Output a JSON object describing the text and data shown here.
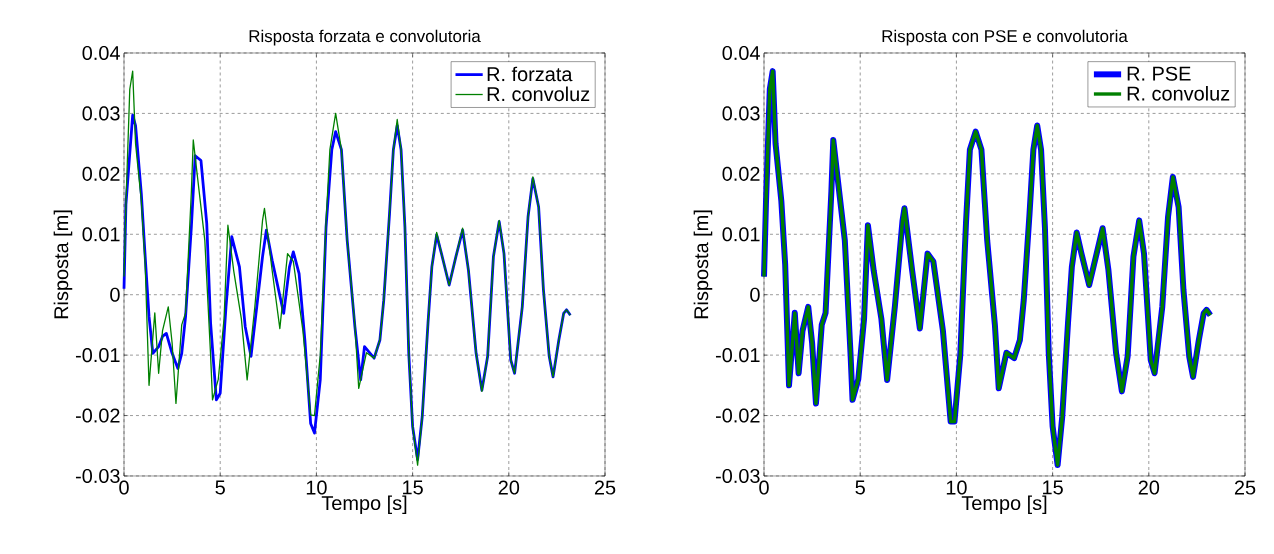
{
  "chart_data": [
    {
      "type": "line",
      "title": "Risposta forzata e convolutoria",
      "xlabel": "Tempo [s]",
      "ylabel": "Risposta [m]",
      "xlim": [
        0,
        25
      ],
      "ylim": [
        -0.03,
        0.04
      ],
      "xticks": [
        0,
        5,
        10,
        15,
        20,
        25
      ],
      "yticks": [
        -0.03,
        -0.02,
        -0.01,
        0,
        0.01,
        0.02,
        0.03,
        0.04
      ],
      "grid": true,
      "legend": "top right",
      "line_style": "solid",
      "series": [
        {
          "name": "R. forzata",
          "color": "#0000ff",
          "x": [
            0,
            0.1,
            0.45,
            0.6,
            0.9,
            1.1,
            1.3,
            1.5,
            1.8,
            2.0,
            2.2,
            2.5,
            2.8,
            3.0,
            3.2,
            3.5,
            3.7,
            4.0,
            4.3,
            4.5,
            4.8,
            5.0,
            5.3,
            5.6,
            6.0,
            6.3,
            6.6,
            6.9,
            7.2,
            7.4,
            7.7,
            8.0,
            8.3,
            8.6,
            8.8,
            9.1,
            9.4,
            9.7,
            9.9,
            10.2,
            10.5,
            10.8,
            11.0,
            11.3,
            11.6,
            12.0,
            12.3,
            12.5,
            13.0,
            13.3,
            13.5,
            13.8,
            14.0,
            14.2,
            14.4,
            14.6,
            14.8,
            15.0,
            15.26,
            15.5,
            15.8,
            16.0,
            16.25,
            16.5,
            16.9,
            17.25,
            17.6,
            17.9,
            18.3,
            18.6,
            18.9,
            19.2,
            19.5,
            19.75,
            20.1,
            20.3,
            20.7,
            21.0,
            21.25,
            21.55,
            21.8,
            22.1,
            22.3,
            22.6,
            22.85,
            23.0,
            23.2
          ],
          "values": [
            0.001,
            0.015,
            0.0297,
            0.028,
            0.0167,
            0.0063,
            -0.0036,
            -0.0097,
            -0.0086,
            -0.0069,
            -0.0064,
            -0.0097,
            -0.0122,
            -0.0097,
            -0.0036,
            0.0112,
            0.023,
            0.0222,
            0.0118,
            -0.0047,
            -0.0174,
            -0.0163,
            -0.002,
            0.0096,
            0.0046,
            -0.0053,
            -0.0102,
            -0.002,
            0.0063,
            0.0107,
            0.0057,
            0.0013,
            -0.0031,
            0.0046,
            0.0071,
            0.0035,
            -0.0075,
            -0.0213,
            -0.0229,
            -0.0141,
            0.0112,
            0.024,
            0.027,
            0.024,
            0.009,
            -0.0053,
            -0.0141,
            -0.0086,
            -0.0105,
            -0.0075,
            -0.0009,
            0.0134,
            0.024,
            0.028,
            0.024,
            0.0112,
            -0.0097,
            -0.0218,
            -0.0273,
            -0.0202,
            -0.0047,
            0.0046,
            0.0099,
            0.0068,
            0.0016,
            0.0063,
            0.0107,
            0.0041,
            -0.0097,
            -0.0158,
            -0.0102,
            0.0063,
            0.0121,
            0.0068,
            -0.0108,
            -0.013,
            -0.002,
            0.0129,
            0.0192,
            0.0145,
            0.0008,
            -0.0102,
            -0.0136,
            -0.0075,
            -0.0031,
            -0.0025,
            -0.0034
          ]
        },
        {
          "name": "R. convoluz",
          "color": "#008000",
          "x": [
            0,
            0.1,
            0.3,
            0.45,
            0.6,
            0.9,
            1.1,
            1.3,
            1.6,
            1.8,
            2.0,
            2.3,
            2.5,
            2.7,
            3.0,
            3.2,
            3.5,
            3.6,
            3.8,
            4.2,
            4.5,
            4.6,
            4.9,
            5.2,
            5.4,
            5.7,
            6.1,
            6.4,
            6.8,
            7.2,
            7.3,
            7.7,
            8.1,
            8.5,
            8.8,
            9.3,
            9.7,
            9.9,
            10.2,
            10.5,
            10.7,
            11.0,
            11.3,
            11.6,
            12.0,
            12.2,
            12.6,
            13.0,
            13.3,
            13.5,
            13.8,
            14.0,
            14.2,
            14.4,
            14.6,
            14.8,
            15.0,
            15.26,
            15.5,
            15.8,
            16.0,
            16.25,
            16.5,
            16.9,
            17.25,
            17.6,
            17.9,
            18.3,
            18.6,
            18.9,
            19.2,
            19.5,
            19.75,
            20.1,
            20.3,
            20.7,
            21.0,
            21.25,
            21.55,
            21.8,
            22.1,
            22.3,
            22.6,
            22.85,
            23.0,
            23.2
          ],
          "values": [
            0.003,
            0.015,
            0.034,
            0.037,
            0.025,
            0.0155,
            0.005,
            -0.015,
            -0.003,
            -0.013,
            -0.006,
            -0.002,
            -0.008,
            -0.018,
            -0.005,
            -0.003,
            0.017,
            0.0256,
            0.02,
            0.009,
            -0.01,
            -0.0174,
            -0.014,
            -0.004,
            0.0115,
            0.004,
            -0.004,
            -0.0141,
            -0.002,
            0.0123,
            0.0143,
            0.004,
            -0.0056,
            0.0068,
            0.0055,
            -0.006,
            -0.0199,
            -0.02,
            -0.01,
            0.012,
            0.024,
            0.03,
            0.024,
            0.009,
            -0.005,
            -0.0155,
            -0.0096,
            -0.0105,
            -0.0075,
            -0.0009,
            0.0134,
            0.024,
            0.029,
            0.024,
            0.0112,
            -0.0097,
            -0.0218,
            -0.0282,
            -0.0202,
            -0.0047,
            0.0046,
            0.0103,
            0.0068,
            0.0016,
            0.0063,
            0.011,
            0.0041,
            -0.0097,
            -0.016,
            -0.0102,
            0.0063,
            0.0123,
            0.0068,
            -0.0108,
            -0.013,
            -0.002,
            0.0129,
            0.0195,
            0.0145,
            0.0008,
            -0.0102,
            -0.0136,
            -0.0075,
            -0.0031,
            -0.0025,
            -0.0034
          ]
        }
      ]
    },
    {
      "type": "line",
      "title": "Risposta con PSE e convolutoria",
      "xlabel": "Tempo [s]",
      "ylabel": "Risposta [m]",
      "xlim": [
        0,
        25
      ],
      "ylim": [
        -0.03,
        0.04
      ],
      "xticks": [
        0,
        5,
        10,
        15,
        20,
        25
      ],
      "yticks": [
        -0.03,
        -0.02,
        -0.01,
        0,
        0.01,
        0.02,
        0.03,
        0.04
      ],
      "grid": true,
      "legend": "top right",
      "line_style": "solid",
      "series": [
        {
          "name": "R. PSE",
          "color": "#0000ff",
          "x": [
            0,
            0.1,
            0.3,
            0.45,
            0.6,
            0.9,
            1.1,
            1.3,
            1.6,
            1.8,
            2.0,
            2.3,
            2.5,
            2.7,
            3.0,
            3.2,
            3.5,
            3.6,
            3.8,
            4.2,
            4.5,
            4.6,
            4.9,
            5.2,
            5.4,
            5.7,
            6.1,
            6.4,
            6.8,
            7.2,
            7.3,
            7.7,
            8.1,
            8.5,
            8.8,
            9.3,
            9.7,
            9.9,
            10.2,
            10.5,
            10.7,
            11.0,
            11.3,
            11.6,
            12.0,
            12.2,
            12.6,
            13.0,
            13.3,
            13.5,
            13.8,
            14.0,
            14.2,
            14.4,
            14.6,
            14.8,
            15.0,
            15.26,
            15.5,
            15.8,
            16.0,
            16.25,
            16.5,
            16.9,
            17.25,
            17.6,
            17.9,
            18.3,
            18.6,
            18.9,
            19.2,
            19.5,
            19.75,
            20.1,
            20.3,
            20.7,
            21.0,
            21.25,
            21.55,
            21.8,
            22.1,
            22.3,
            22.6,
            22.85,
            23.0,
            23.2
          ],
          "values": [
            0.003,
            0.015,
            0.034,
            0.037,
            0.025,
            0.0155,
            0.005,
            -0.015,
            -0.003,
            -0.013,
            -0.006,
            -0.002,
            -0.008,
            -0.018,
            -0.005,
            -0.003,
            0.017,
            0.0256,
            0.02,
            0.009,
            -0.01,
            -0.0174,
            -0.014,
            -0.004,
            0.0115,
            0.004,
            -0.004,
            -0.0141,
            -0.002,
            0.0123,
            0.0143,
            0.004,
            -0.0056,
            0.0068,
            0.0055,
            -0.006,
            -0.021,
            -0.021,
            -0.01,
            0.012,
            0.024,
            0.027,
            0.024,
            0.009,
            -0.005,
            -0.0155,
            -0.0096,
            -0.0105,
            -0.0075,
            -0.0009,
            0.0134,
            0.024,
            0.028,
            0.024,
            0.0112,
            -0.0097,
            -0.0218,
            -0.0282,
            -0.0202,
            -0.0047,
            0.0046,
            0.0103,
            0.0068,
            0.0016,
            0.0063,
            0.011,
            0.0041,
            -0.0097,
            -0.016,
            -0.0102,
            0.0063,
            0.0123,
            0.0068,
            -0.0108,
            -0.013,
            -0.002,
            0.0129,
            0.0195,
            0.0145,
            0.0008,
            -0.0102,
            -0.0136,
            -0.0075,
            -0.0031,
            -0.0025,
            -0.0034
          ]
        },
        {
          "name": "R. convoluz",
          "color": "#008000",
          "x": [
            0,
            0.1,
            0.3,
            0.45,
            0.6,
            0.9,
            1.1,
            1.3,
            1.6,
            1.8,
            2.0,
            2.3,
            2.5,
            2.7,
            3.0,
            3.2,
            3.5,
            3.6,
            3.8,
            4.2,
            4.5,
            4.6,
            4.9,
            5.2,
            5.4,
            5.7,
            6.1,
            6.4,
            6.8,
            7.2,
            7.3,
            7.7,
            8.1,
            8.5,
            8.8,
            9.3,
            9.7,
            9.9,
            10.2,
            10.5,
            10.7,
            11.0,
            11.3,
            11.6,
            12.0,
            12.2,
            12.6,
            13.0,
            13.3,
            13.5,
            13.8,
            14.0,
            14.2,
            14.4,
            14.6,
            14.8,
            15.0,
            15.26,
            15.5,
            15.8,
            16.0,
            16.25,
            16.5,
            16.9,
            17.25,
            17.6,
            17.9,
            18.3,
            18.6,
            18.9,
            19.2,
            19.5,
            19.75,
            20.1,
            20.3,
            20.7,
            21.0,
            21.25,
            21.55,
            21.8,
            22.1,
            22.3,
            22.6,
            22.85,
            23.0,
            23.2
          ],
          "values": [
            0.003,
            0.015,
            0.034,
            0.037,
            0.025,
            0.0155,
            0.005,
            -0.015,
            -0.003,
            -0.013,
            -0.006,
            -0.002,
            -0.008,
            -0.018,
            -0.005,
            -0.003,
            0.017,
            0.0256,
            0.02,
            0.009,
            -0.01,
            -0.0174,
            -0.014,
            -0.004,
            0.0115,
            0.004,
            -0.004,
            -0.0141,
            -0.002,
            0.0123,
            0.0143,
            0.004,
            -0.0056,
            0.0068,
            0.0055,
            -0.006,
            -0.021,
            -0.021,
            -0.01,
            0.012,
            0.024,
            0.027,
            0.024,
            0.009,
            -0.005,
            -0.0155,
            -0.0096,
            -0.0105,
            -0.0075,
            -0.0009,
            0.0134,
            0.024,
            0.028,
            0.024,
            0.0112,
            -0.0097,
            -0.0218,
            -0.0282,
            -0.0202,
            -0.0047,
            0.0046,
            0.0103,
            0.0068,
            0.0016,
            0.0063,
            0.011,
            0.0041,
            -0.0097,
            -0.016,
            -0.0102,
            0.0063,
            0.0123,
            0.0068,
            -0.0108,
            -0.013,
            -0.002,
            0.0129,
            0.0195,
            0.0145,
            0.0008,
            -0.0102,
            -0.0136,
            -0.0075,
            -0.0031,
            -0.0025,
            -0.0034
          ]
        }
      ]
    }
  ]
}
